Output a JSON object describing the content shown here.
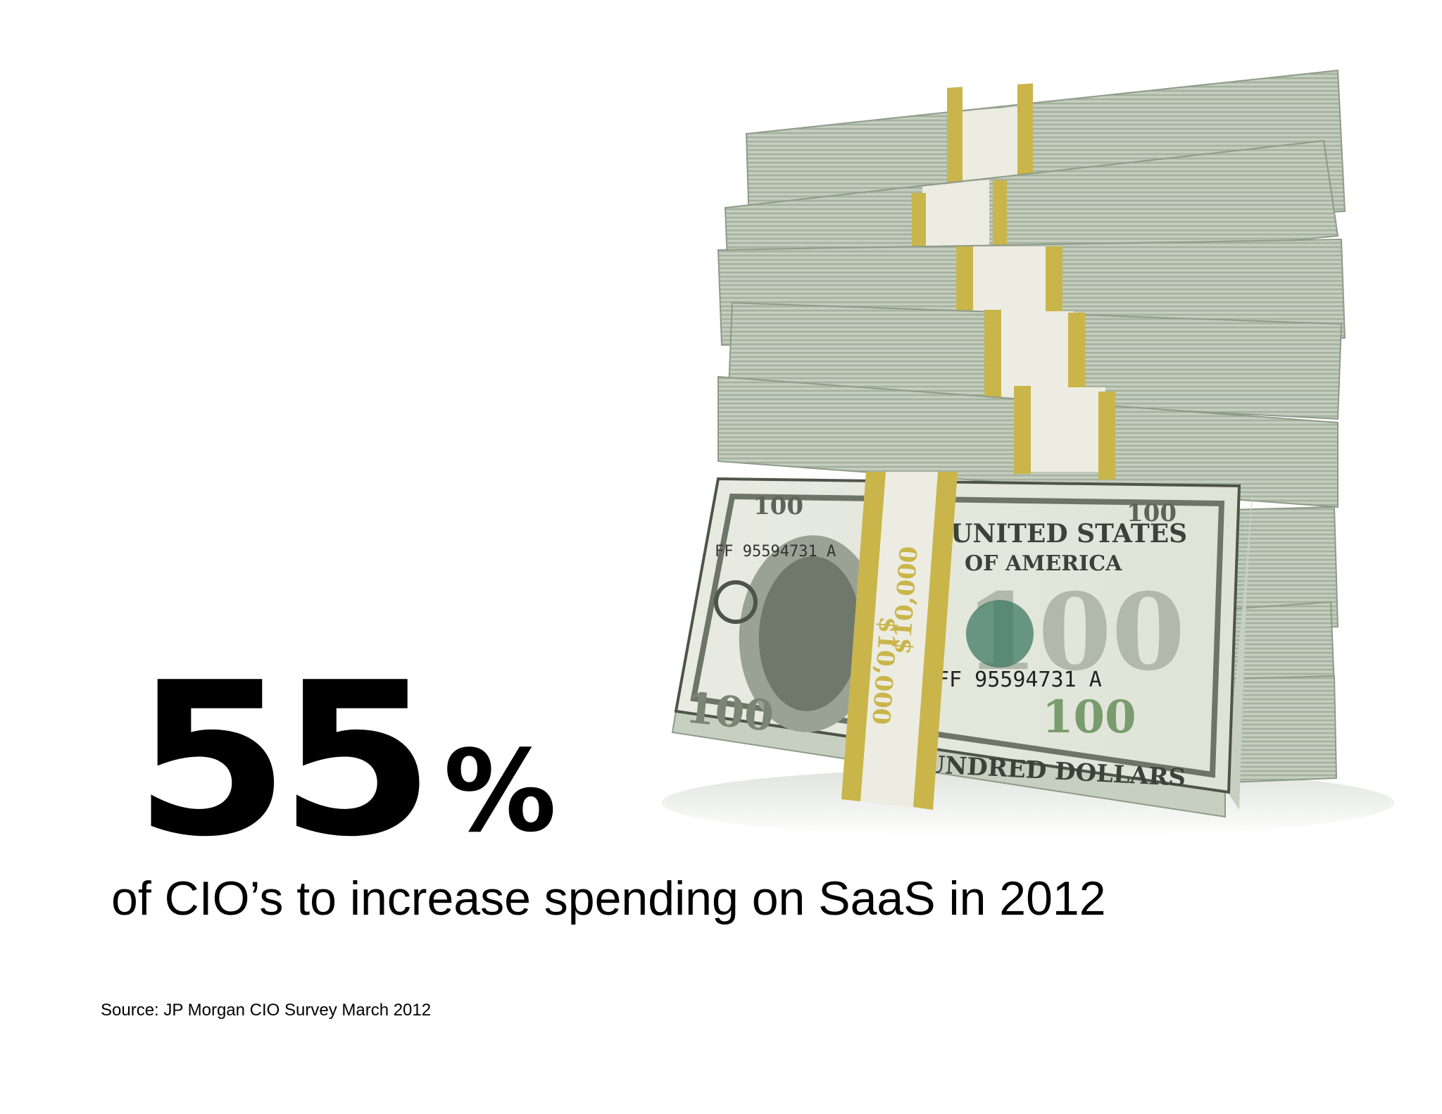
{
  "stat": {
    "number": "55",
    "percent_sign": "%",
    "caption": "of CIO’s to increase spending on SaaS in 2012"
  },
  "source": {
    "text": "Source: JP Morgan CIO Survey March 2012"
  },
  "illustration": {
    "subject": "stack of banded $100 bills",
    "band_label": "$10,000",
    "bill_heading": "THE UNITED STATES OF AMERICA",
    "bill_denomination": "100",
    "bill_serial": "FF 95594731 A",
    "bill_footer": "HUNDRED DOLLARS",
    "colors": {
      "bill_green": "#b9c4b3",
      "bill_dark": "#7d8c78",
      "band_gold": "#c9b54a",
      "band_paper": "#ecece2"
    }
  }
}
